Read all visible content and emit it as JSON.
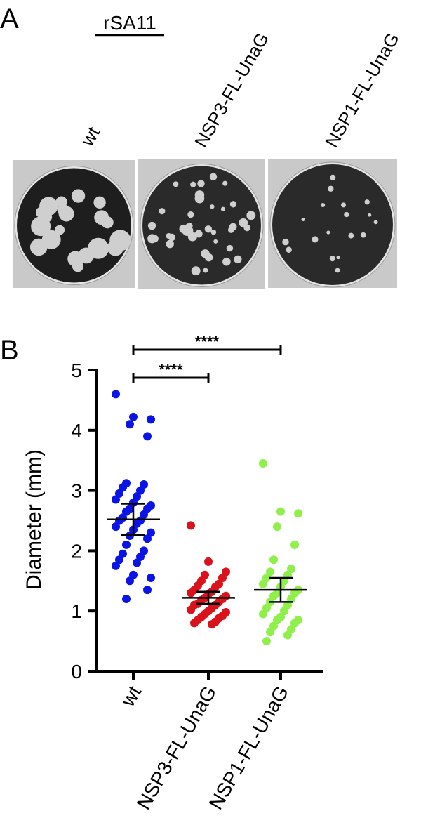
{
  "panel_a": {
    "label": "A",
    "title": "rSA11",
    "columns": [
      "wt",
      "NSP3-FL-UnaG",
      "NSP1-FL-UnaG"
    ]
  },
  "chart_data": {
    "type": "strip",
    "panel_label": "B",
    "ylabel": "Diameter (mm)",
    "categories": [
      "wt",
      "NSP3-FL-UnaG",
      "NSP1-FL-UnaG"
    ],
    "ylim": [
      0,
      5
    ],
    "yticks": [
      0,
      1,
      2,
      3,
      4,
      5
    ],
    "series": [
      {
        "color": "#0a14e6",
        "mean": 2.52,
        "error": [
          2.26,
          2.78
        ],
        "values": [
          4.6,
          4.22,
          4.18,
          4.1,
          3.9,
          3.12,
          3.1,
          3.05,
          3.0,
          2.95,
          2.9,
          2.85,
          2.8,
          2.75,
          2.7,
          2.7,
          2.65,
          2.6,
          2.55,
          2.5,
          2.5,
          2.45,
          2.4,
          2.35,
          2.3,
          2.25,
          2.2,
          2.1,
          2.0,
          1.95,
          1.9,
          1.85,
          1.8,
          1.75,
          1.6,
          1.55,
          1.5,
          1.35,
          1.2
        ]
      },
      {
        "color": "#d9121b",
        "mean": 1.22,
        "error": [
          1.12,
          1.32
        ],
        "values": [
          2.42,
          1.82,
          1.65,
          1.6,
          1.55,
          1.5,
          1.45,
          1.42,
          1.4,
          1.35,
          1.32,
          1.3,
          1.28,
          1.25,
          1.22,
          1.2,
          1.18,
          1.15,
          1.12,
          1.1,
          1.1,
          1.05,
          1.02,
          1.0,
          0.98,
          0.95,
          0.92,
          0.9,
          0.88,
          0.85,
          0.82,
          0.8,
          0.78
        ]
      },
      {
        "color": "#8ff04a",
        "mean": 1.35,
        "error": [
          1.15,
          1.55
        ],
        "values": [
          3.45,
          2.65,
          2.62,
          2.4,
          2.1,
          1.85,
          1.7,
          1.65,
          1.6,
          1.55,
          1.5,
          1.45,
          1.4,
          1.35,
          1.3,
          1.3,
          1.25,
          1.2,
          1.15,
          1.1,
          1.05,
          1.0,
          0.95,
          0.9,
          0.85,
          0.85,
          0.8,
          0.75,
          0.7,
          0.65,
          0.6,
          0.5
        ]
      }
    ],
    "significance": [
      {
        "label": "****",
        "between": [
          "wt",
          "NSP3-FL-UnaG"
        ]
      },
      {
        "label": "****",
        "between": [
          "wt",
          "NSP1-FL-UnaG"
        ]
      }
    ]
  }
}
